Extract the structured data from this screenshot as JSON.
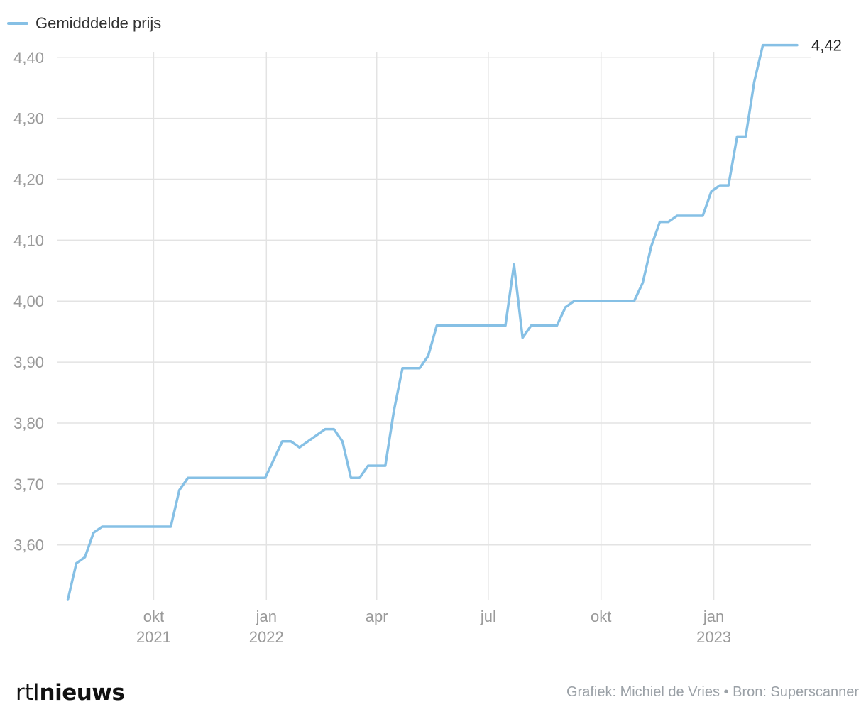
{
  "legend": {
    "label": "Gemidddelde prijs"
  },
  "colors": {
    "line": "#86c0e5",
    "grid": "#e3e3e3",
    "axis_text": "#9a9a9a",
    "end_label": "#222222"
  },
  "footer": {
    "logo_prefix": "rtl",
    "logo_suffix": "nieuws",
    "credit": "Grafiek: Michiel de Vries • Bron: Superscanner"
  },
  "chart_data": {
    "type": "line",
    "title": "",
    "xlabel": "",
    "ylabel": "",
    "ylim": [
      3.51,
      4.43
    ],
    "xlim": [
      "2021-07-14",
      "2023-03-21"
    ],
    "grid": true,
    "legend_position": "top-left",
    "y_ticks": [
      {
        "value": 3.6,
        "label": "3,60"
      },
      {
        "value": 3.7,
        "label": "3,70"
      },
      {
        "value": 3.8,
        "label": "3,80"
      },
      {
        "value": 3.9,
        "label": "3,90"
      },
      {
        "value": 4.0,
        "label": "4,00"
      },
      {
        "value": 4.1,
        "label": "4,10"
      },
      {
        "value": 4.2,
        "label": "4,20"
      },
      {
        "value": 4.3,
        "label": "4,30"
      },
      {
        "value": 4.4,
        "label": "4,40"
      }
    ],
    "x_ticks": [
      {
        "date": "2021-10-01",
        "label": "okt",
        "year": "2021"
      },
      {
        "date": "2022-01-01",
        "label": "jan",
        "year": "2022"
      },
      {
        "date": "2022-04-01",
        "label": "apr",
        "year": ""
      },
      {
        "date": "2022-07-01",
        "label": "jul",
        "year": ""
      },
      {
        "date": "2022-10-01",
        "label": "okt",
        "year": ""
      },
      {
        "date": "2023-01-01",
        "label": "jan",
        "year": "2023"
      }
    ],
    "end_label": "4,42",
    "series": [
      {
        "name": "Gemidddelde prijs",
        "points": [
          [
            "2021-07-23",
            3.51
          ],
          [
            "2021-07-30",
            3.57
          ],
          [
            "2021-08-06",
            3.58
          ],
          [
            "2021-08-13",
            3.62
          ],
          [
            "2021-08-20",
            3.63
          ],
          [
            "2021-08-27",
            3.63
          ],
          [
            "2021-09-15",
            3.63
          ],
          [
            "2021-10-15",
            3.63
          ],
          [
            "2021-10-22",
            3.69
          ],
          [
            "2021-10-29",
            3.71
          ],
          [
            "2021-11-26",
            3.71
          ],
          [
            "2021-12-31",
            3.71
          ],
          [
            "2022-01-14",
            3.77
          ],
          [
            "2022-01-21",
            3.77
          ],
          [
            "2022-01-28",
            3.76
          ],
          [
            "2022-02-18",
            3.79
          ],
          [
            "2022-02-25",
            3.79
          ],
          [
            "2022-03-04",
            3.77
          ],
          [
            "2022-03-11",
            3.71
          ],
          [
            "2022-03-18",
            3.71
          ],
          [
            "2022-03-25",
            3.73
          ],
          [
            "2022-04-08",
            3.73
          ],
          [
            "2022-04-15",
            3.82
          ],
          [
            "2022-04-22",
            3.89
          ],
          [
            "2022-05-06",
            3.89
          ],
          [
            "2022-05-13",
            3.91
          ],
          [
            "2022-05-20",
            3.96
          ],
          [
            "2022-06-10",
            3.96
          ],
          [
            "2022-07-15",
            3.96
          ],
          [
            "2022-07-22",
            4.06
          ],
          [
            "2022-07-29",
            3.94
          ],
          [
            "2022-08-05",
            3.96
          ],
          [
            "2022-08-26",
            3.96
          ],
          [
            "2022-09-02",
            3.99
          ],
          [
            "2022-09-09",
            4.0
          ],
          [
            "2022-10-28",
            4.0
          ],
          [
            "2022-11-04",
            4.03
          ],
          [
            "2022-11-11",
            4.09
          ],
          [
            "2022-11-18",
            4.13
          ],
          [
            "2022-11-25",
            4.13
          ],
          [
            "2022-12-02",
            4.14
          ],
          [
            "2022-12-23",
            4.14
          ],
          [
            "2022-12-30",
            4.18
          ],
          [
            "2023-01-06",
            4.19
          ],
          [
            "2023-01-13",
            4.19
          ],
          [
            "2023-01-20",
            4.27
          ],
          [
            "2023-01-27",
            4.27
          ],
          [
            "2023-02-03",
            4.36
          ],
          [
            "2023-02-10",
            4.42
          ],
          [
            "2023-03-10",
            4.42
          ]
        ]
      }
    ]
  }
}
